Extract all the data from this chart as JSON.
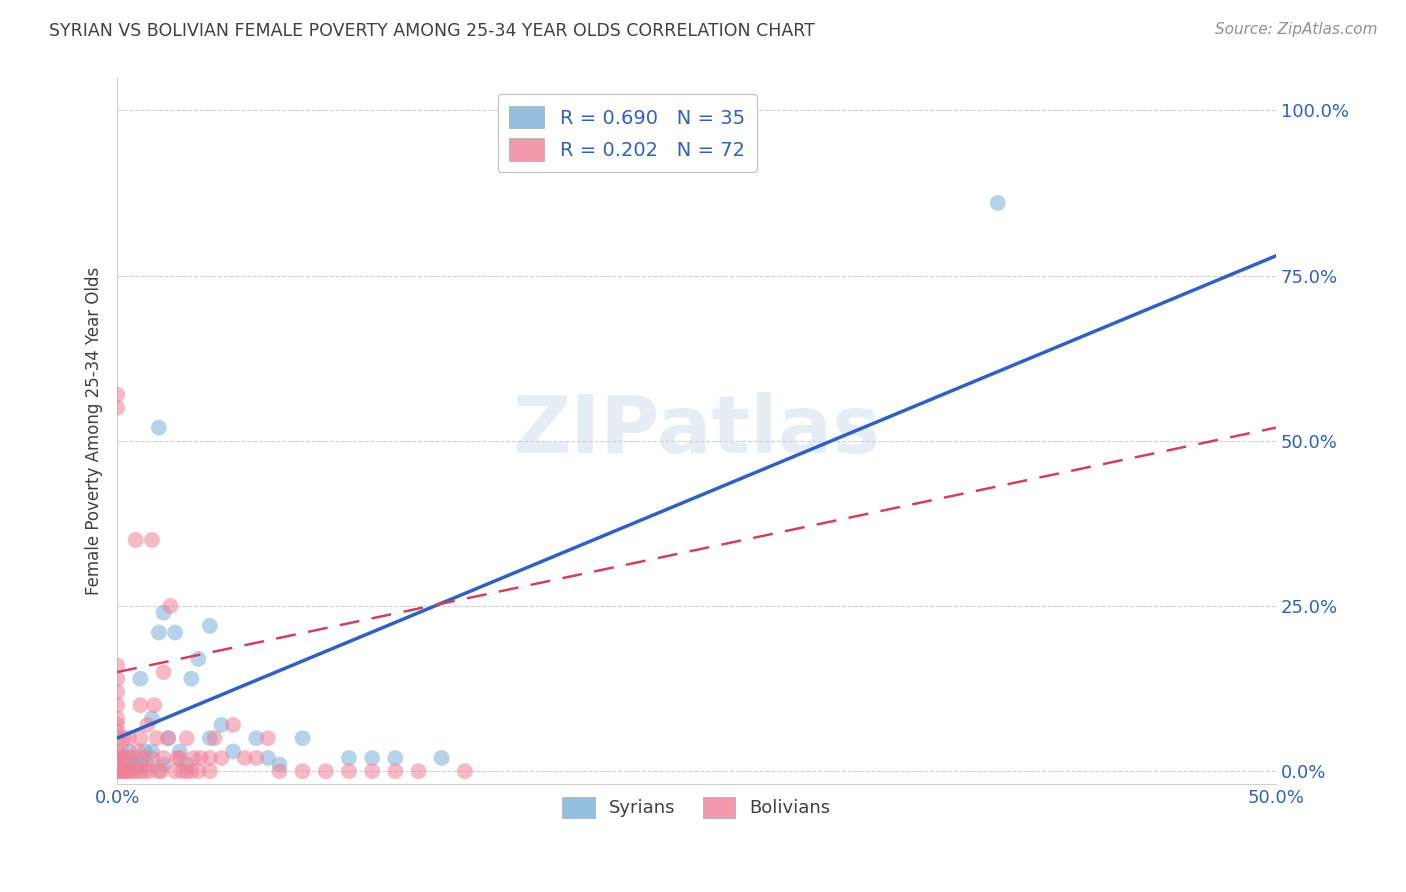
{
  "title": "SYRIAN VS BOLIVIAN FEMALE POVERTY AMONG 25-34 YEAR OLDS CORRELATION CHART",
  "source": "Source: ZipAtlas.com",
  "ylabel": "Female Poverty Among 25-34 Year Olds",
  "watermark": "ZIPatlas",
  "xlim": [
    0.0,
    0.5
  ],
  "ylim": [
    -0.02,
    1.05
  ],
  "x_ticks": [
    0.0,
    0.5
  ],
  "x_labels": [
    "0.0%",
    "50.0%"
  ],
  "y_ticks": [
    0.0,
    0.25,
    0.5,
    0.75,
    1.0
  ],
  "y_labels": [
    "0.0%",
    "25.0%",
    "50.0%",
    "75.0%",
    "100.0%"
  ],
  "legend_labels": [
    "R = 0.690   N = 35",
    "R = 0.202   N = 72"
  ],
  "bottom_legend_labels": [
    "Syrians",
    "Bolivians"
  ],
  "syrians_color": "#7ab0d8",
  "bolivians_color": "#f08098",
  "trendline_syrian_color": "#3060c0",
  "trendline_bolivian_color": "#d04060",
  "title_color": "#404040",
  "tick_color": "#3060c0",
  "grid_color": "#c8c8d8",
  "syrian_trend": [
    0.0,
    0.05,
    0.5,
    0.78
  ],
  "bolivian_trend": [
    0.0,
    0.15,
    0.5,
    0.52
  ],
  "syrians": [
    [
      0.0,
      0.0
    ],
    [
      0.002,
      0.01
    ],
    [
      0.003,
      0.02
    ],
    [
      0.005,
      0.03
    ],
    [
      0.007,
      0.01
    ],
    [
      0.008,
      0.02
    ],
    [
      0.01,
      0.14
    ],
    [
      0.01,
      0.01
    ],
    [
      0.012,
      0.03
    ],
    [
      0.013,
      0.01
    ],
    [
      0.015,
      0.08
    ],
    [
      0.015,
      0.03
    ],
    [
      0.018,
      0.21
    ],
    [
      0.018,
      0.52
    ],
    [
      0.02,
      0.24
    ],
    [
      0.022,
      0.05
    ],
    [
      0.025,
      0.21
    ],
    [
      0.027,
      0.03
    ],
    [
      0.03,
      0.01
    ],
    [
      0.032,
      0.14
    ],
    [
      0.035,
      0.17
    ],
    [
      0.04,
      0.05
    ],
    [
      0.04,
      0.22
    ],
    [
      0.045,
      0.07
    ],
    [
      0.05,
      0.03
    ],
    [
      0.06,
      0.05
    ],
    [
      0.065,
      0.02
    ],
    [
      0.07,
      0.01
    ],
    [
      0.08,
      0.05
    ],
    [
      0.1,
      0.02
    ],
    [
      0.11,
      0.02
    ],
    [
      0.12,
      0.02
    ],
    [
      0.14,
      0.02
    ],
    [
      0.38,
      0.86
    ],
    [
      0.02,
      0.01
    ]
  ],
  "bolivians": [
    [
      0.0,
      0.0
    ],
    [
      0.0,
      0.01
    ],
    [
      0.0,
      0.02
    ],
    [
      0.0,
      0.03
    ],
    [
      0.0,
      0.05
    ],
    [
      0.0,
      0.06
    ],
    [
      0.0,
      0.07
    ],
    [
      0.0,
      0.08
    ],
    [
      0.0,
      0.1
    ],
    [
      0.0,
      0.12
    ],
    [
      0.0,
      0.14
    ],
    [
      0.0,
      0.16
    ],
    [
      0.0,
      0.55
    ],
    [
      0.0,
      0.57
    ],
    [
      0.001,
      0.0
    ],
    [
      0.001,
      0.02
    ],
    [
      0.002,
      0.0
    ],
    [
      0.002,
      0.03
    ],
    [
      0.003,
      0.0
    ],
    [
      0.003,
      0.05
    ],
    [
      0.004,
      0.0
    ],
    [
      0.004,
      0.02
    ],
    [
      0.005,
      0.0
    ],
    [
      0.005,
      0.05
    ],
    [
      0.006,
      0.02
    ],
    [
      0.007,
      0.0
    ],
    [
      0.008,
      0.0
    ],
    [
      0.008,
      0.35
    ],
    [
      0.009,
      0.03
    ],
    [
      0.01,
      0.0
    ],
    [
      0.01,
      0.05
    ],
    [
      0.01,
      0.1
    ],
    [
      0.011,
      0.02
    ],
    [
      0.012,
      0.0
    ],
    [
      0.013,
      0.07
    ],
    [
      0.014,
      0.0
    ],
    [
      0.015,
      0.02
    ],
    [
      0.015,
      0.35
    ],
    [
      0.016,
      0.1
    ],
    [
      0.017,
      0.05
    ],
    [
      0.018,
      0.0
    ],
    [
      0.019,
      0.0
    ],
    [
      0.02,
      0.02
    ],
    [
      0.02,
      0.15
    ],
    [
      0.022,
      0.05
    ],
    [
      0.023,
      0.25
    ],
    [
      0.025,
      0.0
    ],
    [
      0.026,
      0.02
    ],
    [
      0.027,
      0.02
    ],
    [
      0.028,
      0.0
    ],
    [
      0.03,
      0.0
    ],
    [
      0.03,
      0.05
    ],
    [
      0.032,
      0.0
    ],
    [
      0.033,
      0.02
    ],
    [
      0.035,
      0.0
    ],
    [
      0.036,
      0.02
    ],
    [
      0.04,
      0.0
    ],
    [
      0.04,
      0.02
    ],
    [
      0.042,
      0.05
    ],
    [
      0.045,
      0.02
    ],
    [
      0.05,
      0.07
    ],
    [
      0.055,
      0.02
    ],
    [
      0.06,
      0.02
    ],
    [
      0.065,
      0.05
    ],
    [
      0.07,
      0.0
    ],
    [
      0.08,
      0.0
    ],
    [
      0.09,
      0.0
    ],
    [
      0.1,
      0.0
    ],
    [
      0.11,
      0.0
    ],
    [
      0.12,
      0.0
    ],
    [
      0.13,
      0.0
    ],
    [
      0.15,
      0.0
    ]
  ]
}
